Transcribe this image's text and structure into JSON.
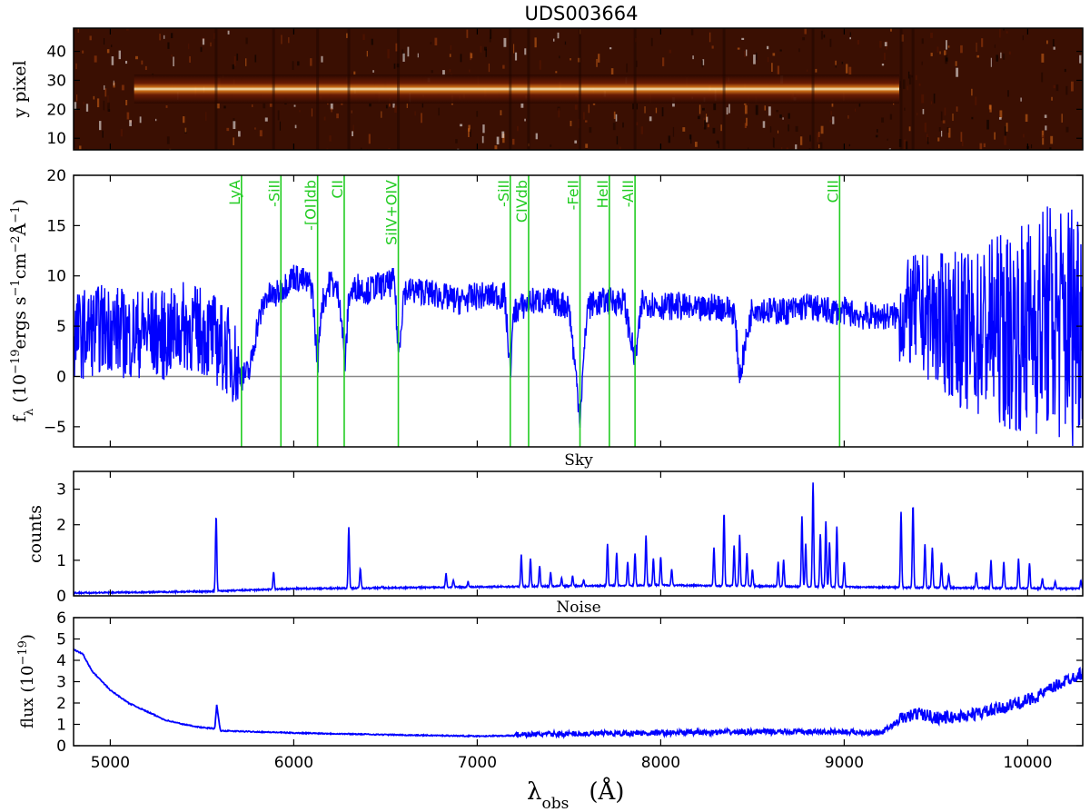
{
  "chart_data": [
    {
      "type": "heatmap",
      "title": "UDS003664",
      "ylabel": "y pixel",
      "ylim": [
        6,
        48
      ],
      "yticks": [
        10,
        20,
        30,
        40
      ],
      "xlim": [
        4800,
        10300
      ],
      "trace_center_y": 27,
      "colormap": "afmhot"
    },
    {
      "type": "line",
      "ylabel_parts": [
        "f",
        "λ",
        " (10",
        "−19",
        "ergs s",
        "−1",
        "cm",
        "−2",
        "Å",
        "−1",
        ")"
      ],
      "xlim": [
        4800,
        10300
      ],
      "ylim": [
        -7,
        20
      ],
      "yticks": [
        -5,
        0,
        5,
        10,
        15,
        20
      ],
      "zero_line": true,
      "series": [
        {
          "color": "#0000ff",
          "x": [
            4800,
            4900,
            5000,
            5100,
            5200,
            5300,
            5400,
            5500,
            5560,
            5600,
            5650,
            5700,
            5720,
            5760,
            5800,
            5850,
            5900,
            5950,
            6000,
            6050,
            6100,
            6130,
            6150,
            6200,
            6250,
            6280,
            6300,
            6350,
            6400,
            6450,
            6500,
            6550,
            6570,
            6600,
            6650,
            6700,
            6800,
            6900,
            7000,
            7100,
            7150,
            7180,
            7200,
            7250,
            7300,
            7400,
            7500,
            7560,
            7600,
            7700,
            7800,
            7860,
            7900,
            8000,
            8100,
            8200,
            8300,
            8400,
            8430,
            8500,
            8600,
            8700,
            8800,
            8900,
            9000,
            9100,
            9200,
            9300,
            9400,
            9500,
            9600,
            9700,
            9800,
            9900,
            10000,
            10100,
            10200,
            10300
          ],
          "y": [
            4,
            4.5,
            5,
            4,
            4.5,
            4,
            5,
            4.5,
            4,
            3,
            2.5,
            0.5,
            0,
            0.5,
            5,
            8,
            8,
            9,
            10,
            9.5,
            9,
            1,
            7,
            9.5,
            8,
            1,
            8,
            9,
            8.5,
            9,
            9,
            9.5,
            2,
            8.5,
            8.5,
            8.5,
            8,
            7.5,
            8,
            8,
            8,
            0.5,
            6.5,
            7,
            7.5,
            7.5,
            7,
            -4,
            7,
            7.5,
            7.5,
            1.5,
            7.5,
            7,
            7,
            6.5,
            7,
            6.5,
            0,
            7,
            6.5,
            6.5,
            7,
            6.5,
            6.5,
            6,
            6,
            6,
            6.5,
            5.5,
            5,
            4,
            5,
            4.5,
            5,
            6,
            5,
            7
          ]
        }
      ],
      "lines": [
        {
          "label": "LyA",
          "x": 5715
        },
        {
          "label": "-SiII",
          "x": 5930
        },
        {
          "label": "-[OI]db",
          "x": 6130
        },
        {
          "label": "CII",
          "x": 6275
        },
        {
          "label": "SiIV+OIV",
          "x": 6570
        },
        {
          "label": "-SiII",
          "x": 7180
        },
        {
          "label": "CIVdb",
          "x": 7280
        },
        {
          "label": "-FeII",
          "x": 7560
        },
        {
          "label": "HeII",
          "x": 7720
        },
        {
          "label": "-AlII",
          "x": 7860
        },
        {
          "label": "CIII",
          "x": 8975
        }
      ]
    },
    {
      "type": "line",
      "title": "Sky",
      "ylabel": "counts",
      "xlim": [
        4800,
        10300
      ],
      "ylim": [
        0,
        3.5
      ],
      "yticks": [
        0,
        1,
        2,
        3
      ],
      "continuum": [
        [
          4800,
          0.08
        ],
        [
          5500,
          0.12
        ],
        [
          6000,
          0.2
        ],
        [
          7000,
          0.25
        ],
        [
          8000,
          0.3
        ],
        [
          9000,
          0.25
        ],
        [
          10300,
          0.2
        ]
      ],
      "series": [
        {
          "color": "#0000ff",
          "peaks": [
            [
              5577,
              2.25
            ],
            [
              5890,
              0.68
            ],
            [
              6300,
              1.95
            ],
            [
              6363,
              0.78
            ],
            [
              6480,
              0.25
            ],
            [
              6830,
              0.62
            ],
            [
              6870,
              0.45
            ],
            [
              6950,
              0.4
            ],
            [
              7240,
              1.15
            ],
            [
              7290,
              1.05
            ],
            [
              7340,
              0.85
            ],
            [
              7400,
              0.65
            ],
            [
              7460,
              0.5
            ],
            [
              7520,
              0.55
            ],
            [
              7580,
              0.45
            ],
            [
              7710,
              1.45
            ],
            [
              7760,
              1.2
            ],
            [
              7820,
              0.95
            ],
            [
              7860,
              1.2
            ],
            [
              7920,
              1.7
            ],
            [
              7960,
              1.05
            ],
            [
              8000,
              1.1
            ],
            [
              8060,
              0.75
            ],
            [
              8290,
              1.35
            ],
            [
              8345,
              2.35
            ],
            [
              8400,
              1.4
            ],
            [
              8430,
              1.7
            ],
            [
              8470,
              1.2
            ],
            [
              8500,
              0.75
            ],
            [
              8640,
              0.95
            ],
            [
              8670,
              1.0
            ],
            [
              8770,
              2.25
            ],
            [
              8790,
              1.45
            ],
            [
              8830,
              3.2
            ],
            [
              8870,
              1.75
            ],
            [
              8900,
              2.1
            ],
            [
              8920,
              1.5
            ],
            [
              8960,
              1.95
            ],
            [
              9000,
              0.95
            ],
            [
              9310,
              2.35
            ],
            [
              9375,
              2.55
            ],
            [
              9440,
              1.45
            ],
            [
              9480,
              1.35
            ],
            [
              9530,
              0.95
            ],
            [
              9570,
              0.6
            ],
            [
              9720,
              0.65
            ],
            [
              9800,
              1.0
            ],
            [
              9870,
              0.95
            ],
            [
              9950,
              1.05
            ],
            [
              10010,
              0.9
            ],
            [
              10080,
              0.5
            ],
            [
              10150,
              0.4
            ],
            [
              10290,
              0.45
            ]
          ]
        }
      ]
    },
    {
      "type": "line",
      "title": "Noise",
      "ylabel_parts": [
        "flux (10",
        "−19",
        ")"
      ],
      "xlabel_parts": [
        "λ",
        "obs",
        "(Å)"
      ],
      "xlim": [
        4800,
        10300
      ],
      "ylim": [
        0,
        6
      ],
      "yticks": [
        0,
        1,
        2,
        3,
        4,
        5,
        6
      ],
      "xticks": [
        5000,
        6000,
        7000,
        8000,
        9000,
        10000
      ],
      "series": [
        {
          "color": "#0000ff",
          "x": [
            4800,
            4850,
            4900,
            5000,
            5100,
            5200,
            5300,
            5400,
            5500,
            5570,
            5580,
            5600,
            5800,
            6000,
            6300,
            6600,
            7000,
            7500,
            8000,
            8500,
            9000,
            9200,
            9300,
            9400,
            9500,
            9600,
            9800,
            10000,
            10100,
            10200,
            10300
          ],
          "y": [
            4.5,
            4.3,
            3.5,
            2.6,
            2.0,
            1.6,
            1.2,
            1.0,
            0.85,
            0.8,
            1.9,
            0.7,
            0.65,
            0.6,
            0.55,
            0.5,
            0.45,
            0.5,
            0.55,
            0.6,
            0.6,
            0.55,
            1.1,
            1.4,
            1.2,
            1.2,
            1.5,
            2.0,
            2.4,
            2.9,
            3.3
          ]
        }
      ]
    }
  ]
}
